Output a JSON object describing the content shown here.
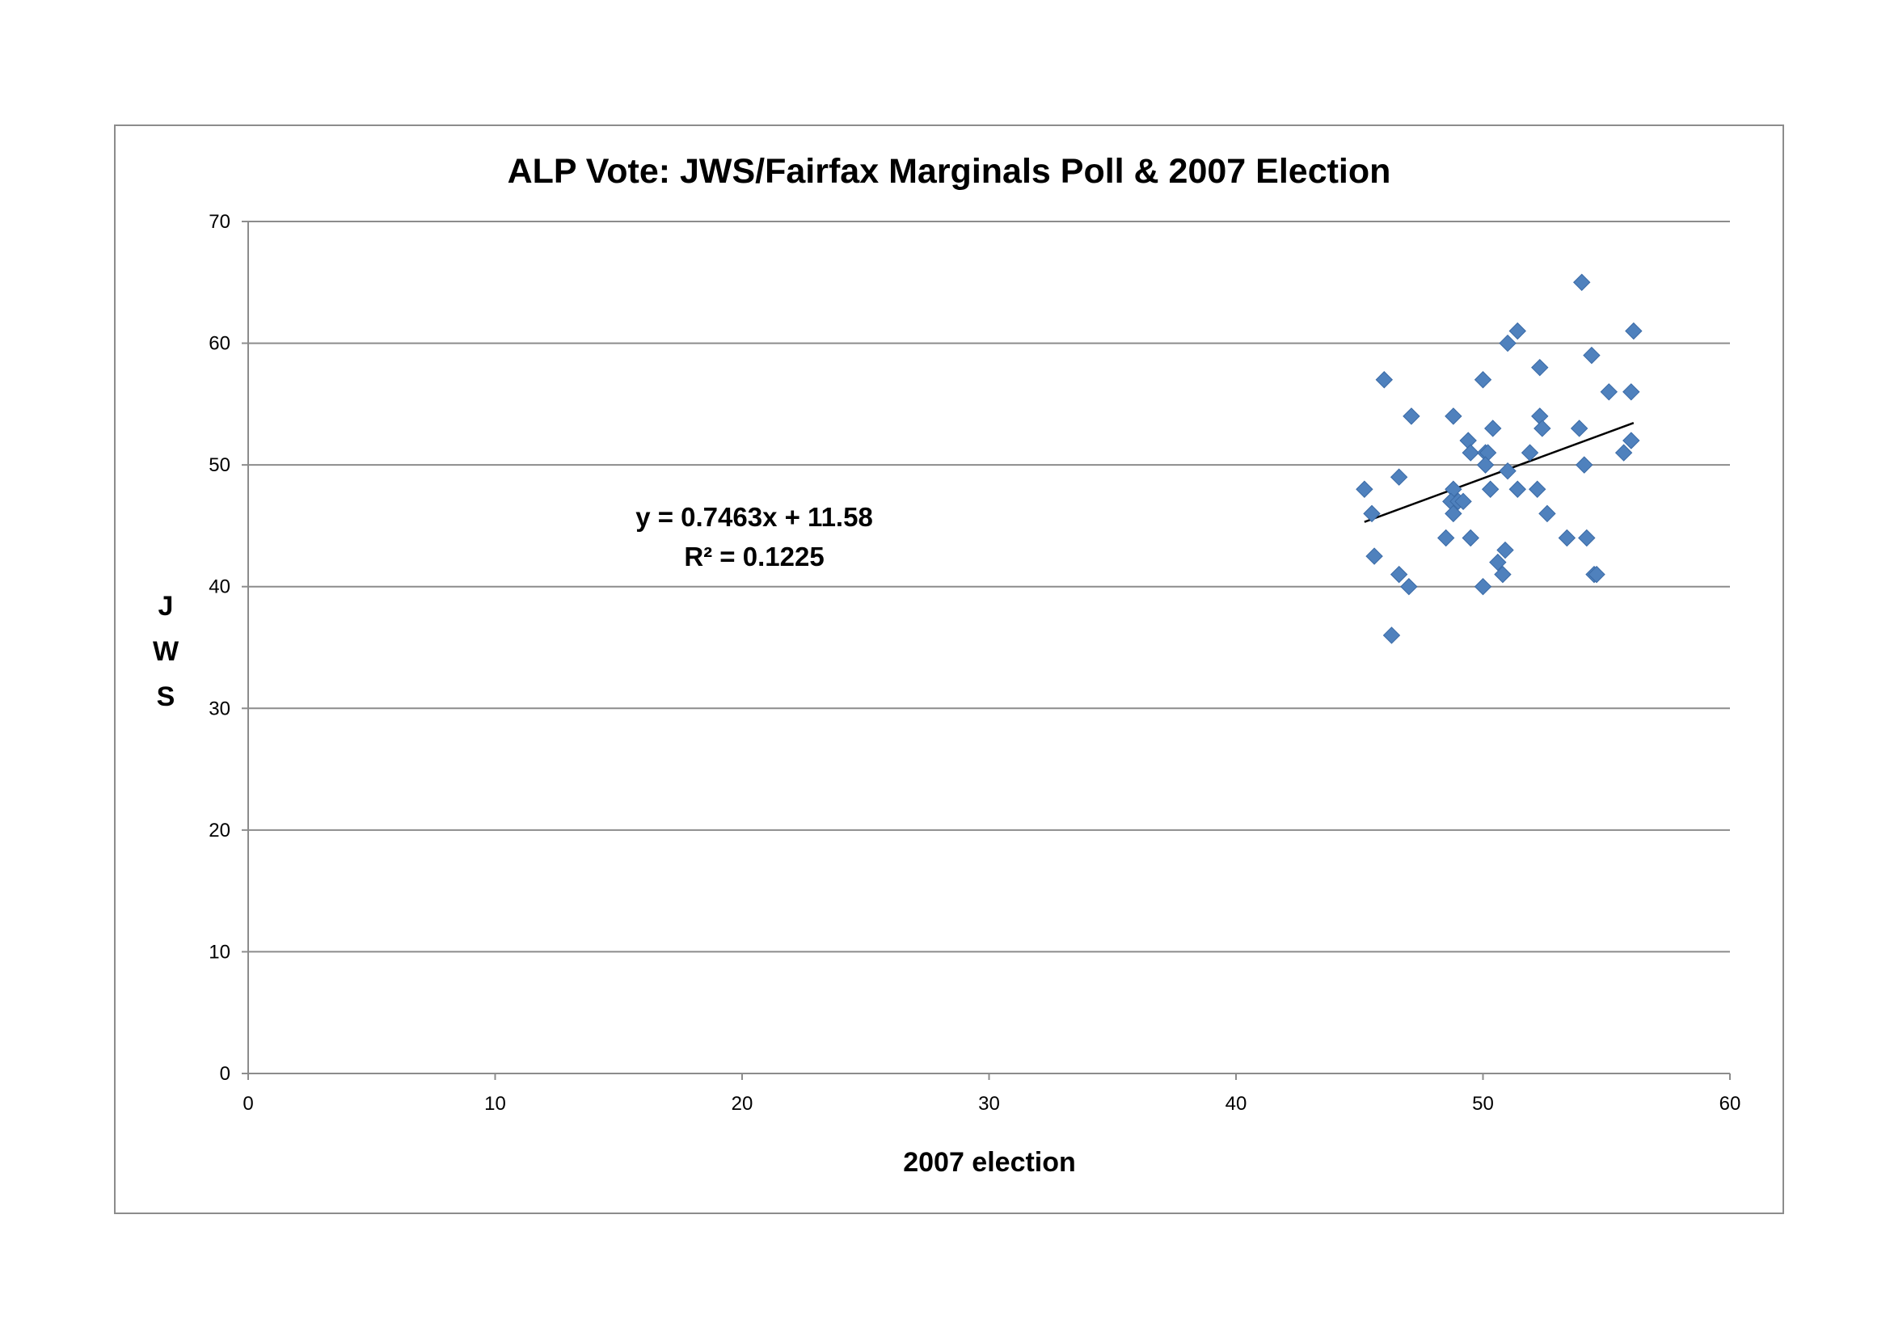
{
  "chart_data": {
    "type": "scatter",
    "title": "ALP Vote: JWS/Fairfax Marginals Poll & 2007 Election",
    "xlabel": "2007 election",
    "ylabel_letters": [
      "J",
      "W",
      "S"
    ],
    "xlim": [
      0,
      60
    ],
    "ylim": [
      0,
      70
    ],
    "x_ticks": [
      "0",
      "10",
      "20",
      "30",
      "40",
      "50",
      "60"
    ],
    "y_ticks": [
      "0",
      "10",
      "20",
      "30",
      "40",
      "50",
      "60",
      "70"
    ],
    "grid": "horizontal",
    "marker_color": "#4f81bd",
    "trendline": {
      "equation": "y = 0.7463x + 11.58",
      "r_squared": "R² = 0.1225",
      "slope": 0.7463,
      "intercept": 11.58,
      "x_range": [
        45.2,
        56.1
      ]
    },
    "points": [
      {
        "x": 54.0,
        "y": 65
      },
      {
        "x": 51.4,
        "y": 61
      },
      {
        "x": 56.1,
        "y": 61
      },
      {
        "x": 51.0,
        "y": 60
      },
      {
        "x": 54.4,
        "y": 59
      },
      {
        "x": 52.3,
        "y": 58
      },
      {
        "x": 46.0,
        "y": 57
      },
      {
        "x": 50.0,
        "y": 57
      },
      {
        "x": 55.1,
        "y": 56
      },
      {
        "x": 56.0,
        "y": 56
      },
      {
        "x": 47.1,
        "y": 54
      },
      {
        "x": 48.8,
        "y": 54
      },
      {
        "x": 52.3,
        "y": 54
      },
      {
        "x": 50.4,
        "y": 53
      },
      {
        "x": 52.4,
        "y": 53
      },
      {
        "x": 53.9,
        "y": 53
      },
      {
        "x": 49.4,
        "y": 52
      },
      {
        "x": 56.0,
        "y": 52
      },
      {
        "x": 49.5,
        "y": 51
      },
      {
        "x": 50.1,
        "y": 51
      },
      {
        "x": 50.2,
        "y": 51
      },
      {
        "x": 51.9,
        "y": 51
      },
      {
        "x": 55.7,
        "y": 51
      },
      {
        "x": 50.1,
        "y": 50
      },
      {
        "x": 54.1,
        "y": 50
      },
      {
        "x": 46.6,
        "y": 49
      },
      {
        "x": 51.0,
        "y": 49.5
      },
      {
        "x": 45.2,
        "y": 48
      },
      {
        "x": 48.8,
        "y": 48
      },
      {
        "x": 50.3,
        "y": 48
      },
      {
        "x": 51.4,
        "y": 48
      },
      {
        "x": 52.2,
        "y": 48
      },
      {
        "x": 48.7,
        "y": 47
      },
      {
        "x": 49.0,
        "y": 47
      },
      {
        "x": 49.2,
        "y": 47
      },
      {
        "x": 45.5,
        "y": 46
      },
      {
        "x": 48.8,
        "y": 46
      },
      {
        "x": 52.6,
        "y": 46
      },
      {
        "x": 48.5,
        "y": 44
      },
      {
        "x": 49.5,
        "y": 44
      },
      {
        "x": 53.4,
        "y": 44
      },
      {
        "x": 54.2,
        "y": 44
      },
      {
        "x": 50.9,
        "y": 43
      },
      {
        "x": 45.6,
        "y": 42.5
      },
      {
        "x": 50.6,
        "y": 42
      },
      {
        "x": 46.6,
        "y": 41
      },
      {
        "x": 50.8,
        "y": 41
      },
      {
        "x": 54.5,
        "y": 41
      },
      {
        "x": 54.6,
        "y": 41
      },
      {
        "x": 47.0,
        "y": 40
      },
      {
        "x": 50.0,
        "y": 40
      },
      {
        "x": 46.3,
        "y": 36
      }
    ]
  }
}
